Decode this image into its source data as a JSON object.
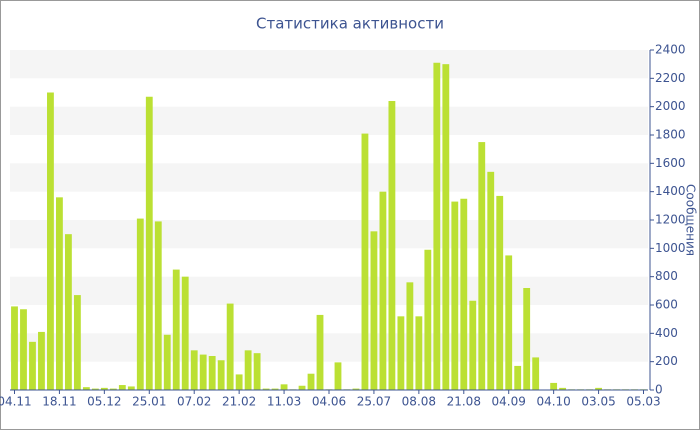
{
  "chart_data": {
    "type": "bar",
    "title": "Статистика активности",
    "y_label": "Сообщения",
    "categories": [
      "04.11",
      null,
      null,
      null,
      null,
      "18.11",
      null,
      null,
      null,
      null,
      "05.12",
      null,
      null,
      null,
      null,
      "25.01",
      null,
      null,
      null,
      null,
      "07.02",
      null,
      null,
      null,
      null,
      "21.02",
      null,
      null,
      null,
      null,
      "11.03",
      null,
      null,
      null,
      null,
      "04.06",
      null,
      null,
      null,
      null,
      "25.07",
      null,
      null,
      null,
      null,
      "08.08",
      null,
      null,
      null,
      null,
      "21.08",
      null,
      null,
      null,
      null,
      "04.09",
      null,
      null,
      null,
      null,
      "04.10",
      null,
      null,
      null,
      null,
      "03.05",
      null,
      null,
      null,
      null,
      "05.03"
    ],
    "values": [
      590,
      570,
      340,
      410,
      2100,
      1360,
      1100,
      670,
      20,
      10,
      15,
      10,
      35,
      25,
      1210,
      2070,
      1190,
      390,
      850,
      800,
      280,
      250,
      240,
      210,
      610,
      110,
      280,
      260,
      10,
      10,
      40,
      5,
      30,
      115,
      530,
      5,
      195,
      5,
      10,
      1810,
      1120,
      1400,
      2040,
      520,
      760,
      520,
      990,
      2310,
      2300,
      1330,
      1350,
      630,
      1750,
      1540,
      1370,
      950,
      170,
      720,
      230,
      0,
      50,
      15,
      5,
      5,
      5,
      15,
      5,
      5,
      5,
      5,
      5
    ],
    "color": "#bbe033",
    "ylim": [
      0,
      2400
    ],
    "yticks": [
      0,
      200,
      400,
      600,
      800,
      1000,
      1200,
      1400,
      1600,
      1800,
      2000,
      2200,
      2400
    ],
    "grid": true
  }
}
